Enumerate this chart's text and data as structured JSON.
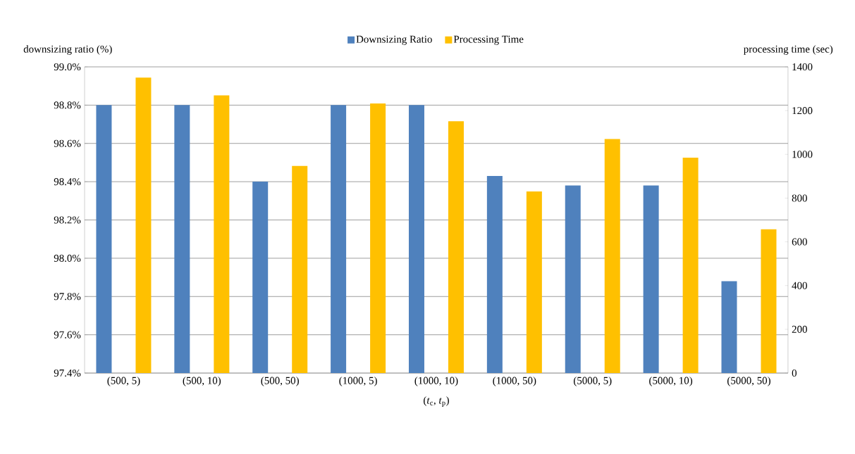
{
  "chart_data": {
    "type": "bar",
    "xlabel": "(*t*$_{c}$, *t*$_{p}$)",
    "ylabel": "downsizing ratio (%)",
    "y2label": "processing time (sec)",
    "categories": [
      "(500, 5)",
      "(500, 10)",
      "(500, 50)",
      "(1000, 5)",
      "(1000, 10)",
      "(1000, 50)",
      "(5000, 5)",
      "(5000, 10)",
      "(5000, 50)"
    ],
    "series": [
      {
        "name": "Downsizing Ratio",
        "color": "#4f81bd",
        "values": [
          98.8,
          98.8,
          98.4,
          98.8,
          98.8,
          98.43,
          98.38,
          98.38,
          97.88
        ]
      },
      {
        "name": "Processing Time",
        "color": "#ffc000",
        "axis": "y2",
        "values": [
          1351,
          1270,
          947,
          1233,
          1151,
          830,
          1070,
          985,
          657
        ]
      }
    ],
    "ylim": [
      97.4,
      99.0
    ],
    "yticks": [
      {
        "value": 97.4,
        "label": "97.4%"
      },
      {
        "value": 97.6,
        "label": "97.6%"
      },
      {
        "value": 97.8,
        "label": "97.8%"
      },
      {
        "value": 98.0,
        "label": "98.0%"
      },
      {
        "value": 98.2,
        "label": "98.2%"
      },
      {
        "value": 98.4,
        "label": "98.4%"
      },
      {
        "value": 98.6,
        "label": "98.6%"
      },
      {
        "value": 98.8,
        "label": "98.8%"
      },
      {
        "value": 99.0,
        "label": "99.0%"
      }
    ],
    "y2lim": [
      0,
      1400
    ],
    "y2ticks": [
      0,
      200,
      400,
      600,
      800,
      1000,
      1200,
      1400
    ],
    "grid": "y",
    "legend": "top"
  }
}
